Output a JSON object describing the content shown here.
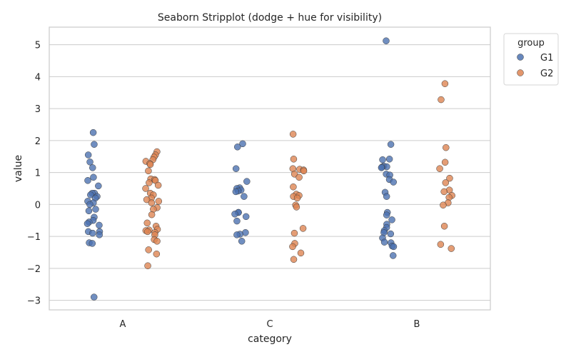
{
  "chart_data": {
    "type": "scatter",
    "subtype": "stripplot",
    "title": "Seaborn Stripplot (dodge + hue for visibility)",
    "xlabel": "category",
    "ylabel": "value",
    "categories": [
      "A",
      "C",
      "B"
    ],
    "ylim": [
      -3.3,
      5.55
    ],
    "yticks": [
      -3,
      -2,
      -1,
      0,
      1,
      2,
      3,
      4,
      5
    ],
    "grid": true,
    "legend": {
      "title": "group",
      "placement": "outside-top-right"
    },
    "series": [
      {
        "name": "G1",
        "color": "#4c72b0",
        "points": {
          "A": [
            2.25,
            1.88,
            1.55,
            1.33,
            1.15,
            0.85,
            0.75,
            0.58,
            0.35,
            0.35,
            0.3,
            0.25,
            0.2,
            0.1,
            0.05,
            0.0,
            -0.15,
            -0.2,
            -0.4,
            -0.5,
            -0.55,
            -0.6,
            -0.65,
            -0.85,
            -0.85,
            -0.9,
            -0.95,
            -1.2,
            -1.22,
            -2.9
          ],
          "C": [
            1.9,
            1.8,
            1.12,
            0.72,
            0.52,
            0.5,
            0.45,
            0.42,
            0.4,
            0.25,
            -0.25,
            -0.25,
            -0.3,
            -0.38,
            -0.52,
            -0.88,
            -0.93,
            -0.95,
            -1.15
          ],
          "B": [
            5.12,
            1.88,
            1.42,
            1.4,
            1.2,
            1.18,
            1.17,
            1.15,
            0.95,
            0.92,
            0.78,
            0.7,
            0.38,
            0.25,
            -0.25,
            -0.33,
            -0.48,
            -0.62,
            -0.72,
            -0.82,
            -0.88,
            -0.92,
            -1.05,
            -1.18,
            -1.2,
            -1.3,
            -1.32,
            -1.6
          ]
        }
      },
      {
        "name": "G2",
        "color": "#dd8452",
        "points": {
          "A": [
            1.65,
            1.55,
            1.48,
            1.4,
            1.35,
            1.28,
            1.25,
            1.05,
            0.8,
            0.78,
            0.75,
            0.68,
            0.6,
            0.5,
            0.35,
            0.3,
            0.2,
            0.15,
            0.1,
            0.05,
            -0.1,
            -0.15,
            -0.32,
            -0.58,
            -0.68,
            -0.78,
            -0.8,
            -0.82,
            -0.85,
            -0.88,
            -0.95,
            -1.1,
            -1.15,
            -1.42,
            -1.55,
            -1.92
          ],
          "C": [
            2.2,
            1.42,
            1.12,
            1.1,
            1.08,
            1.05,
            0.95,
            0.85,
            0.55,
            0.32,
            0.28,
            0.25,
            0.2,
            -0.02,
            -0.08,
            -0.75,
            -0.9,
            -1.22,
            -1.32,
            -1.52,
            -1.72
          ],
          "B": [
            3.78,
            3.28,
            1.78,
            1.32,
            1.12,
            0.82,
            0.68,
            0.45,
            0.4,
            0.28,
            0.22,
            0.05,
            -0.02,
            -0.68,
            -1.25,
            -1.38
          ]
        }
      }
    ]
  }
}
